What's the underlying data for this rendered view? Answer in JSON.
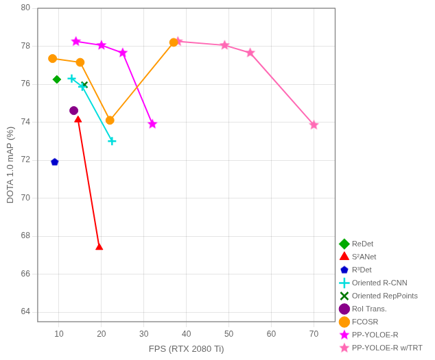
{
  "chart_data": {
    "type": "line",
    "xlabel": "FPS (RTX 2080 Ti)",
    "ylabel": "DOTA 1.0 mAP (%)",
    "xlim": [
      5,
      75
    ],
    "ylim": [
      63.5,
      80
    ],
    "xticks": [
      10,
      20,
      30,
      40,
      50,
      60,
      70
    ],
    "yticks": [
      64,
      66,
      68,
      70,
      72,
      74,
      76,
      78,
      80
    ],
    "grid": true,
    "legend": "lower right",
    "series": [
      {
        "name": "ReDet",
        "color": "#00aa00",
        "marker": "diamond",
        "line_style": "none",
        "x": [
          9.5
        ],
        "values": [
          76.25
        ]
      },
      {
        "name": "S²ANet",
        "color": "#ff0000",
        "marker": "triangle",
        "line_style": "solid",
        "x": [
          14.5,
          19.5
        ],
        "values": [
          74.12,
          67.4
        ]
      },
      {
        "name": "R³Det",
        "color": "#0000cc",
        "marker": "pentagon",
        "line_style": "none",
        "x": [
          9.0
        ],
        "values": [
          71.9
        ]
      },
      {
        "name": "Oriented R-CNN",
        "color": "#00dddd",
        "marker": "plus",
        "line_style": "solid",
        "x": [
          13.0,
          15.5,
          22.5
        ],
        "values": [
          76.3,
          75.87,
          73.0
        ]
      },
      {
        "name": "Oriented RepPoints",
        "color": "#007700",
        "marker": "x",
        "line_style": "none",
        "x": [
          16.0
        ],
        "values": [
          75.97
        ]
      },
      {
        "name": "RoI Trans.",
        "color": "#880088",
        "marker": "circle",
        "line_style": "none",
        "x": [
          13.5
        ],
        "values": [
          74.61
        ]
      },
      {
        "name": "FCOSR",
        "color": "#ff9900",
        "marker": "circle",
        "line_style": "solid",
        "x": [
          8.5,
          15.0,
          22.0,
          37.0
        ],
        "values": [
          77.35,
          77.15,
          74.1,
          78.2
        ]
      },
      {
        "name": "PP-YOLOE-R",
        "color": "#ff00ff",
        "marker": "star",
        "line_style": "solid",
        "x": [
          14.0,
          20.0,
          25.0,
          32.0
        ],
        "values": [
          78.25,
          78.05,
          77.65,
          73.9
        ]
      },
      {
        "name": "PP-YOLOE-R w/TRT",
        "color": "#ff69b4",
        "marker": "star",
        "line_style": "solid",
        "x": [
          38.0,
          49.0,
          55.0,
          70.0
        ],
        "values": [
          78.25,
          78.05,
          77.65,
          73.85
        ]
      }
    ]
  }
}
